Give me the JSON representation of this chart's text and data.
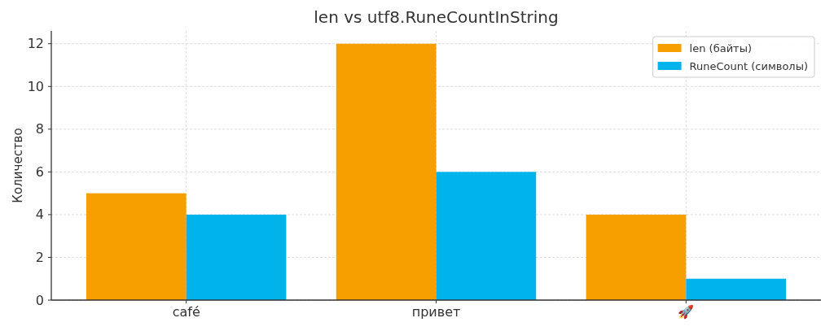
{
  "chart_data": {
    "type": "bar",
    "title": "len vs utf8.RuneCountInString",
    "ylabel": "Количество",
    "categories": [
      "café",
      "привет",
      "🚀"
    ],
    "series": [
      {
        "name": "len (байты)",
        "color": "#f89f00",
        "values": [
          5,
          12,
          4
        ]
      },
      {
        "name": "RuneCount (символы)",
        "color": "#00b3ea",
        "values": [
          4,
          6,
          1
        ]
      }
    ],
    "ylim": [
      0,
      12.6
    ],
    "yticks": [
      0,
      2,
      4,
      6,
      8,
      10,
      12
    ],
    "grid": true,
    "legend": "top right"
  }
}
